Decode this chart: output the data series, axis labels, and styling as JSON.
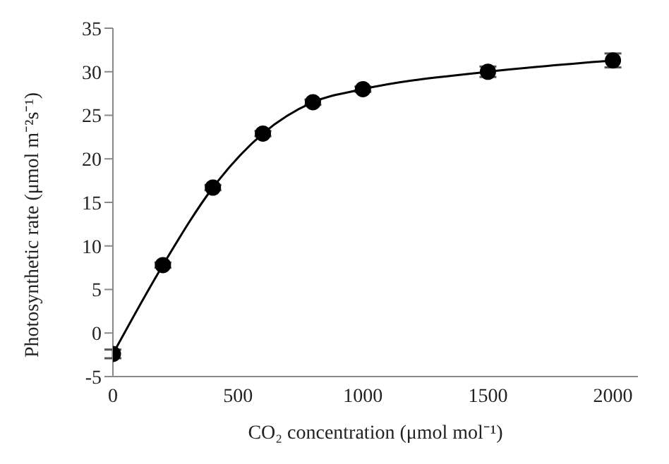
{
  "chart_data": {
    "type": "line",
    "xlabel": "CO₂ concentration (μmol mol⁻¹)",
    "ylabel": "Photosynthetic rate (μmol m⁻²s⁻¹)",
    "x": [
      0,
      200,
      400,
      600,
      800,
      1000,
      1500,
      2000
    ],
    "series": [
      {
        "color": "#000000",
        "values": [
          -2.4,
          7.8,
          16.7,
          22.9,
          26.5,
          28.0,
          30.0,
          31.3
        ],
        "errors": [
          0.5,
          0.3,
          0.3,
          0.3,
          0.3,
          0.3,
          0.6,
          0.8
        ]
      }
    ],
    "xlim": [
      0,
      2100
    ],
    "xticks": [
      0,
      500,
      1000,
      1500,
      2000
    ],
    "ylim": [
      -5,
      35
    ],
    "yticks": [
      -5,
      0,
      5,
      10,
      15,
      20,
      25,
      30,
      35
    ],
    "grid": false,
    "legend": false,
    "marker": "circle",
    "line_style": "solid"
  }
}
